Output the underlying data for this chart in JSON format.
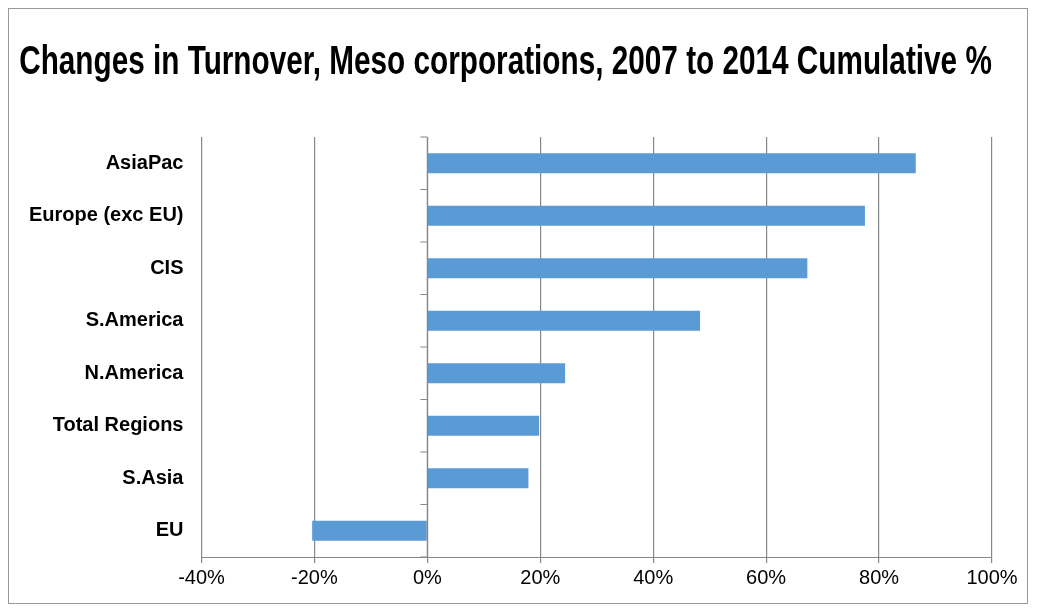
{
  "chart_data": {
    "type": "bar",
    "orientation": "horizontal",
    "title": "Changes in Turnover, Meso corporations, 2007 to 2014 Cumulative %",
    "categories": [
      "AsiaPac",
      "Europe (exc EU)",
      "CIS",
      "S.America",
      "N.America",
      "Total Regions",
      "S.Asia",
      "EU"
    ],
    "values": [
      86.5,
      77.5,
      67.3,
      48.3,
      24.4,
      19.8,
      17.9,
      -20.4
    ],
    "color": "#5b9bd5",
    "xlim": [
      -40,
      100
    ],
    "xticks": [
      {
        "value": -40,
        "label": "-40%"
      },
      {
        "value": -20,
        "label": "-20%"
      },
      {
        "value": 0,
        "label": "0%"
      },
      {
        "value": 20,
        "label": "20%"
      },
      {
        "value": 40,
        "label": "40%"
      },
      {
        "value": 60,
        "label": "60%"
      },
      {
        "value": 80,
        "label": "80%"
      },
      {
        "value": 100,
        "label": "100%"
      }
    ],
    "grid": "x",
    "legend": false
  }
}
